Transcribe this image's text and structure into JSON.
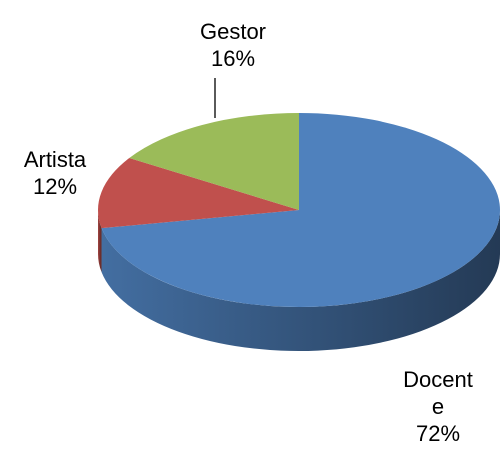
{
  "chart_data": {
    "type": "pie",
    "categories": [
      "Docente",
      "Artista",
      "Gestor"
    ],
    "values": [
      72,
      12,
      16
    ],
    "value_labels": [
      "72%",
      "12%",
      "16%"
    ],
    "colors": [
      "#4f81bd",
      "#c0504d",
      "#9bbb59"
    ]
  }
}
